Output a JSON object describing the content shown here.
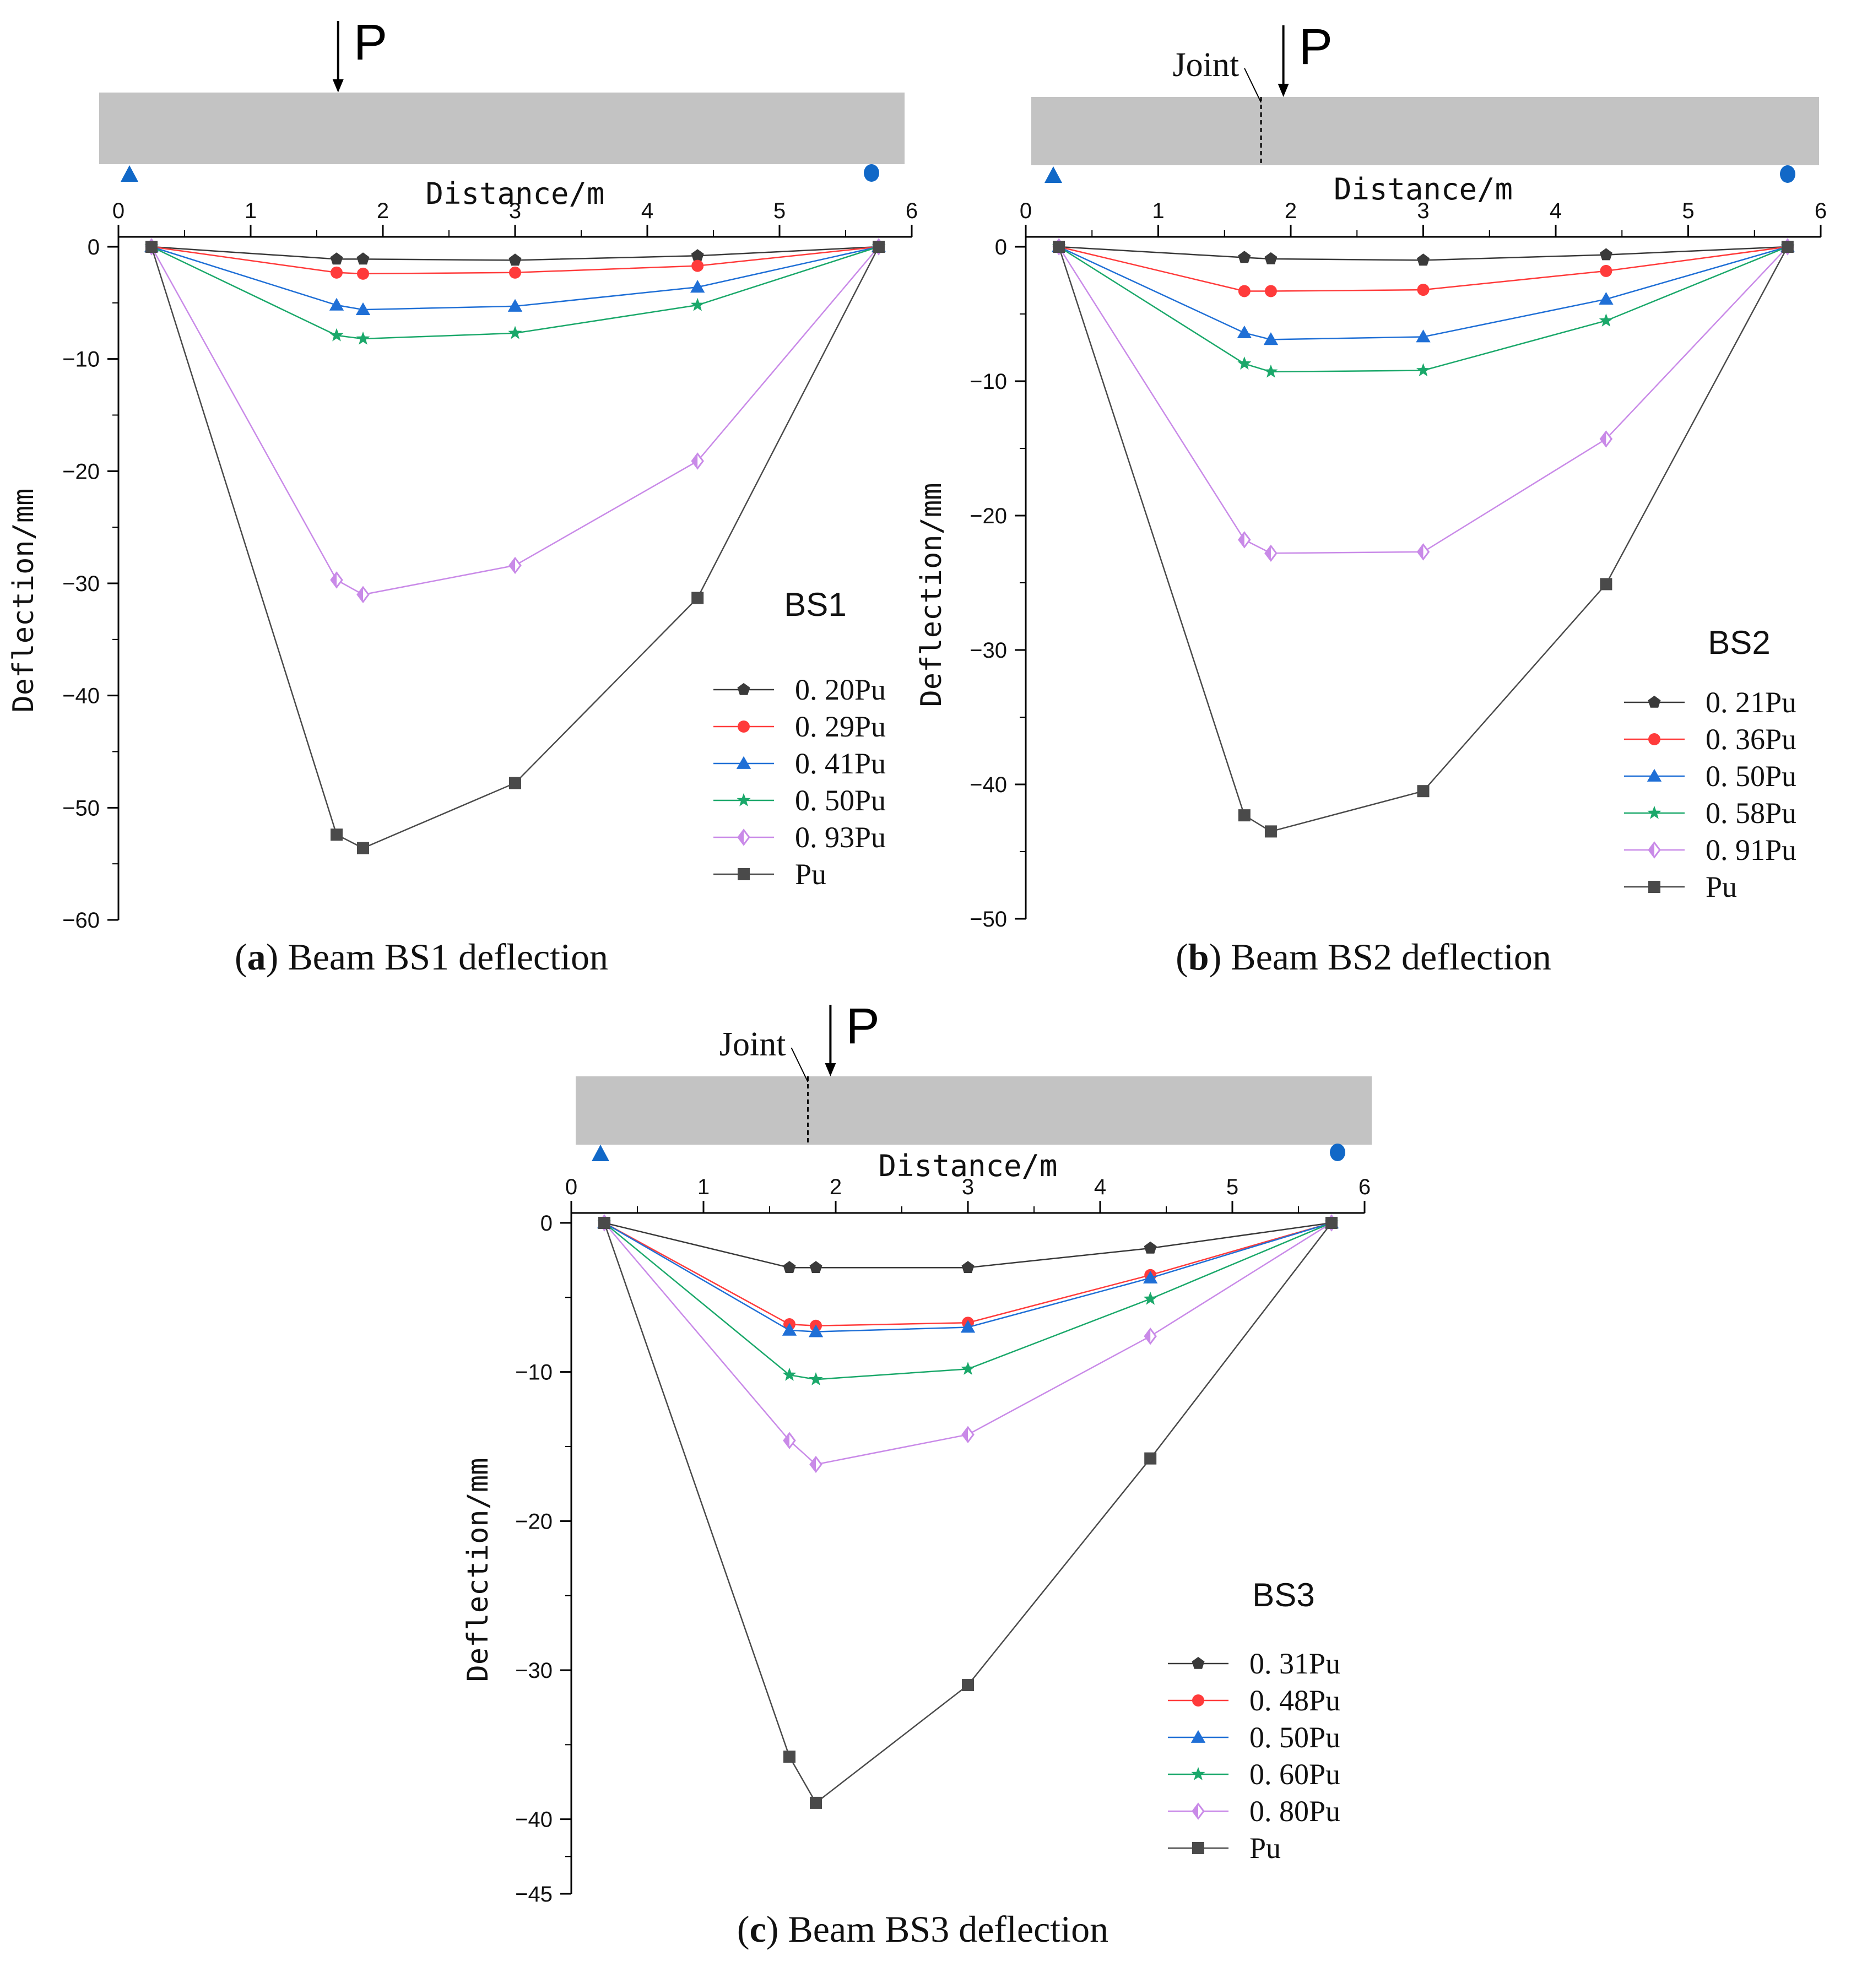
{
  "chart_data": [
    {
      "type": "line",
      "panel_id": "a",
      "caption_letter": "a",
      "caption_text": ") Beam BS1 deflection",
      "caption_open": "(",
      "beam_label": "BS1",
      "load_label": "P",
      "joint_label": "",
      "xlabel": "Distance/m",
      "ylabel": "Deflection/mm",
      "xlim": [
        0,
        6
      ],
      "ylim": [
        -60,
        0
      ],
      "x_ticks": [
        0,
        1,
        2,
        3,
        4,
        5,
        6
      ],
      "y_ticks": [
        0,
        -10,
        -20,
        -30,
        -40,
        -50,
        -60
      ],
      "load_x": 1.78,
      "joint_x": null,
      "x": [
        0.25,
        1.65,
        1.85,
        3.0,
        4.38,
        5.75
      ],
      "series": [
        {
          "name": "0. 20Pu",
          "marker": "pentagon",
          "color": "#3a3a3a",
          "values": [
            0,
            -1.1,
            -1.1,
            -1.2,
            -0.8,
            0
          ]
        },
        {
          "name": "0. 29Pu",
          "marker": "circle",
          "color": "#ff3b3b",
          "values": [
            0,
            -2.3,
            -2.4,
            -2.3,
            -1.7,
            0
          ]
        },
        {
          "name": "0. 41Pu",
          "marker": "triangle",
          "color": "#1f6fd6",
          "values": [
            0,
            -5.2,
            -5.6,
            -5.3,
            -3.6,
            0
          ]
        },
        {
          "name": "0. 50Pu",
          "marker": "star",
          "color": "#1aa86a",
          "values": [
            0,
            -7.9,
            -8.2,
            -7.7,
            -5.2,
            0
          ]
        },
        {
          "name": "0. 93Pu",
          "marker": "diamond",
          "color": "#c98ae8",
          "values": [
            0,
            -29.7,
            -31.0,
            -28.4,
            -19.1,
            0
          ]
        },
        {
          "name": "Pu",
          "marker": "square",
          "color": "#4a4a4a",
          "values": [
            0,
            -52.4,
            -53.6,
            -47.8,
            -31.3,
            0
          ]
        }
      ]
    },
    {
      "type": "line",
      "panel_id": "b",
      "caption_letter": "b",
      "caption_text": ") Beam BS2 deflection",
      "caption_open": "(",
      "beam_label": "BS2",
      "load_label": "P",
      "joint_label": "Joint",
      "xlabel": "Distance/m",
      "ylabel": "Deflection/mm",
      "xlim": [
        0,
        6
      ],
      "ylim": [
        -50,
        0
      ],
      "x_ticks": [
        0,
        1,
        2,
        3,
        4,
        5,
        6
      ],
      "y_ticks": [
        0,
        -10,
        -20,
        -30,
        -40,
        -50
      ],
      "load_x": 1.92,
      "joint_x": 1.75,
      "x": [
        0.25,
        1.65,
        1.85,
        3.0,
        4.38,
        5.75
      ],
      "series": [
        {
          "name": "0. 21Pu",
          "marker": "pentagon",
          "color": "#3a3a3a",
          "values": [
            0,
            -0.8,
            -0.9,
            -1.0,
            -0.6,
            0
          ]
        },
        {
          "name": "0. 36Pu",
          "marker": "circle",
          "color": "#ff3b3b",
          "values": [
            0,
            -3.3,
            -3.3,
            -3.2,
            -1.8,
            0
          ]
        },
        {
          "name": "0. 50Pu",
          "marker": "triangle",
          "color": "#1f6fd6",
          "values": [
            0,
            -6.4,
            -6.9,
            -6.7,
            -3.9,
            0
          ]
        },
        {
          "name": "0. 58Pu",
          "marker": "star",
          "color": "#1aa86a",
          "values": [
            0,
            -8.7,
            -9.3,
            -9.2,
            -5.5,
            0
          ]
        },
        {
          "name": "0. 91Pu",
          "marker": "diamond",
          "color": "#c98ae8",
          "values": [
            0,
            -21.8,
            -22.8,
            -22.7,
            -14.3,
            0
          ]
        },
        {
          "name": "Pu",
          "marker": "square",
          "color": "#4a4a4a",
          "values": [
            0,
            -42.3,
            -43.5,
            -40.5,
            -25.1,
            0
          ]
        }
      ]
    },
    {
      "type": "line",
      "panel_id": "c",
      "caption_letter": "c",
      "caption_text": ") Beam BS3 deflection",
      "caption_open": "(",
      "beam_label": "BS3",
      "load_label": "P",
      "joint_label": "Joint",
      "xlabel": "Distance/m",
      "ylabel": "Deflection/mm",
      "xlim": [
        0,
        6
      ],
      "ylim": [
        -45,
        0
      ],
      "x_ticks": [
        0,
        1,
        2,
        3,
        4,
        5,
        6
      ],
      "y_ticks": [
        0,
        -10,
        -20,
        -30,
        -40,
        -45
      ],
      "load_x": 1.92,
      "joint_x": 1.75,
      "x": [
        0.25,
        1.65,
        1.85,
        3.0,
        4.38,
        5.75
      ],
      "series": [
        {
          "name": "0. 31Pu",
          "marker": "pentagon",
          "color": "#3a3a3a",
          "values": [
            0,
            -3.0,
            -3.0,
            -3.0,
            -1.7,
            0
          ]
        },
        {
          "name": "0. 48Pu",
          "marker": "circle",
          "color": "#ff3b3b",
          "values": [
            0,
            -6.8,
            -6.9,
            -6.7,
            -3.5,
            0
          ]
        },
        {
          "name": "0. 50Pu",
          "marker": "triangle",
          "color": "#1f6fd6",
          "values": [
            0,
            -7.2,
            -7.3,
            -7.0,
            -3.7,
            0
          ]
        },
        {
          "name": "0. 60Pu",
          "marker": "star",
          "color": "#1aa86a",
          "values": [
            0,
            -10.2,
            -10.5,
            -9.8,
            -5.1,
            0
          ]
        },
        {
          "name": "0. 80Pu",
          "marker": "diamond",
          "color": "#c98ae8",
          "values": [
            0,
            -14.6,
            -16.2,
            -14.2,
            -7.6,
            0
          ]
        },
        {
          "name": "Pu",
          "marker": "square",
          "color": "#4a4a4a",
          "values": [
            0,
            -35.8,
            -38.9,
            -31.0,
            -15.8,
            0
          ]
        }
      ]
    }
  ],
  "colors": {
    "beam_fill": "#c3c3c3",
    "support": "#1168c7",
    "axis": "#000000",
    "text": "#111111"
  }
}
